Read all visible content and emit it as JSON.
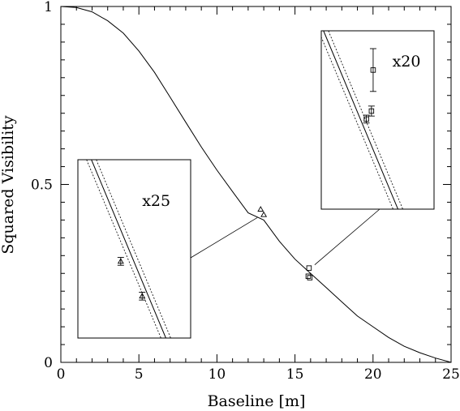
{
  "chart_data": {
    "type": "scatter",
    "xlabel": "Baseline [m]",
    "ylabel": "Squared Visibility",
    "xlim": [
      0,
      25
    ],
    "ylim": [
      0,
      1
    ],
    "x_ticks": [
      {
        "value": 0,
        "label": "0"
      },
      {
        "value": 5,
        "label": "5"
      },
      {
        "value": 10,
        "label": "10"
      },
      {
        "value": 15,
        "label": "15"
      },
      {
        "value": 20,
        "label": "20"
      },
      {
        "value": 25,
        "label": "25"
      }
    ],
    "y_ticks": [
      {
        "value": 0,
        "label": "0"
      },
      {
        "value": 0.5,
        "label": "0.5"
      },
      {
        "value": 1,
        "label": "1"
      }
    ],
    "grid": false,
    "model_curve": {
      "style": "solid",
      "points": [
        [
          0,
          1.0
        ],
        [
          1,
          0.997
        ],
        [
          2,
          0.985
        ],
        [
          3,
          0.96
        ],
        [
          4,
          0.925
        ],
        [
          5,
          0.875
        ],
        [
          6,
          0.815
        ],
        [
          7,
          0.745
        ],
        [
          8,
          0.675
        ],
        [
          9,
          0.605
        ],
        [
          10,
          0.54
        ],
        [
          11,
          0.48
        ],
        [
          12,
          0.42
        ],
        [
          13,
          0.4
        ],
        [
          14,
          0.34
        ],
        [
          15,
          0.29
        ],
        [
          16,
          0.25
        ],
        [
          17,
          0.21
        ],
        [
          18,
          0.17
        ],
        [
          19,
          0.13
        ],
        [
          20,
          0.1
        ],
        [
          21,
          0.07
        ],
        [
          22,
          0.045
        ],
        [
          23,
          0.027
        ],
        [
          24,
          0.012
        ],
        [
          25,
          0.0
        ]
      ]
    },
    "series": [
      {
        "marker": "triangle",
        "points": [
          {
            "x": 12.8,
            "y": 0.43
          },
          {
            "x": 13.0,
            "y": 0.415
          }
        ]
      },
      {
        "marker": "square",
        "points": [
          {
            "x": 15.9,
            "y": 0.265
          },
          {
            "x": 15.85,
            "y": 0.242
          },
          {
            "x": 15.95,
            "y": 0.238
          }
        ]
      }
    ],
    "insets": [
      {
        "id": "left",
        "label": "x25",
        "marker": "triangle",
        "points": [
          {
            "x": 0.38,
            "y": 0.43,
            "err": 0.022
          },
          {
            "x": 0.57,
            "y": 0.235,
            "err": 0.022
          }
        ]
      },
      {
        "id": "right",
        "label": "x20",
        "marker": "square",
        "points": [
          {
            "x": 0.46,
            "y": 0.78,
            "err": 0.12
          },
          {
            "x": 0.445,
            "y": 0.55,
            "err": 0.028
          },
          {
            "x": 0.4,
            "y": 0.505,
            "err": 0.022
          }
        ]
      }
    ]
  }
}
